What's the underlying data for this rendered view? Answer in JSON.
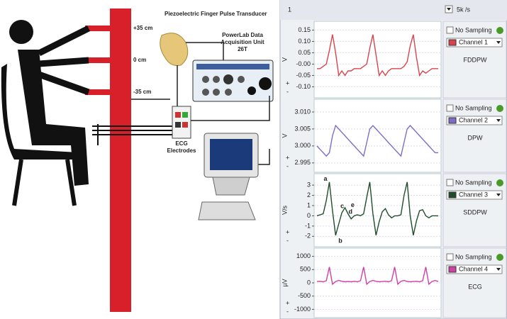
{
  "diagram": {
    "height_labels": [
      "+35 cm",
      "0 cm",
      "-35 cm"
    ],
    "transducer_label": "Piezoelectric Finger Pulse Transducer",
    "powerlab_label": [
      "PowerLab Data",
      "Acquisition Unit",
      "26T"
    ],
    "ecg_label": [
      "ECG",
      "Electrodes"
    ]
  },
  "toolbar": {
    "left": "1",
    "rate": "5k /s"
  },
  "panels": [
    {
      "unit": "V",
      "sampling": "No Sampling",
      "channel": "Channel 1",
      "color": "#d9444c",
      "name": "FDDPW",
      "ylim": [
        -0.13,
        0.17
      ],
      "yticks": [
        0.15,
        {
          "value": 0.1,
          "label": "0.10"
        },
        0.05,
        {
          "value": 0,
          "label": "-0.00"
        },
        -0.05,
        {
          "value": -0.1,
          "label": "-0.10"
        }
      ],
      "values": [
        -0.02,
        -0.02,
        -0.01,
        0.0,
        0.06,
        0.13,
        0.05,
        -0.05,
        -0.03,
        -0.05,
        -0.03,
        -0.03,
        -0.02,
        -0.02,
        -0.02,
        -0.01,
        0.0,
        0.07,
        0.13,
        0.04,
        -0.05,
        -0.03,
        -0.05,
        -0.03,
        -0.02,
        -0.02,
        -0.02,
        -0.02,
        -0.01,
        0.01,
        0.08,
        0.13,
        0.03,
        -0.05,
        -0.03,
        -0.04,
        -0.03,
        -0.02,
        -0.02,
        -0.02
      ]
    },
    {
      "unit": "V",
      "sampling": "No Sampling",
      "channel": "Channel 2",
      "color": "#7f6cc8",
      "name": "DPW",
      "ylim": [
        2.9935,
        3.0125
      ],
      "yticks": [
        {
          "value": 3.01,
          "label": "3.010"
        },
        3.005,
        {
          "value": 3.0,
          "label": "3.000"
        },
        2.995
      ],
      "values": [
        3.0,
        2.999,
        2.998,
        2.997,
        2.998,
        3.003,
        3.006,
        3.005,
        3.004,
        3.003,
        3.002,
        3.001,
        3.0,
        2.999,
        2.998,
        2.997,
        3.001,
        3.005,
        3.006,
        3.005,
        3.004,
        3.003,
        3.002,
        3.001,
        3.0,
        2.999,
        2.998,
        2.997,
        3.001,
        3.005,
        3.006,
        3.005,
        3.004,
        3.003,
        3.002,
        3.001,
        3.0,
        2.999,
        2.998,
        2.998
      ]
    },
    {
      "unit": "V/s",
      "sampling": "No Sampling",
      "channel": "Channel 3",
      "color": "#1f4d2a",
      "name": "SDDPW",
      "ylim": [
        -2.6,
        3.7
      ],
      "yticks": [
        3,
        2,
        1,
        0,
        -1,
        -2
      ],
      "annotations": [
        "a",
        "b",
        "c",
        "d",
        "e"
      ],
      "values": [
        0.0,
        0.1,
        0.2,
        1.5,
        3.3,
        0.5,
        -1.9,
        -0.8,
        0.3,
        0.8,
        0.2,
        -0.3,
        0.0,
        0.1,
        0.0,
        0.2,
        1.8,
        3.3,
        0.2,
        -1.9,
        -0.6,
        0.4,
        0.7,
        0.1,
        -0.2,
        0.0,
        0.0,
        0.1,
        2.0,
        3.3,
        0.0,
        -1.9,
        -0.5,
        0.5,
        0.6,
        0.0,
        -0.2,
        0.0,
        0.0,
        0.0
      ]
    },
    {
      "unit": "µV",
      "sampling": "No Sampling",
      "channel": "Channel 4",
      "color": "#d23fa6",
      "name": "ECG",
      "ylim": [
        -1150,
        1150
      ],
      "yticks": [
        1000,
        500,
        0,
        -500,
        -1000
      ],
      "values": [
        50,
        60,
        40,
        80,
        600,
        -50,
        50,
        90,
        60,
        40,
        50,
        40,
        60,
        40,
        80,
        600,
        -50,
        50,
        90,
        60,
        40,
        50,
        60,
        40,
        80,
        600,
        -50,
        60,
        90,
        50,
        40,
        50,
        60,
        40,
        80,
        600,
        -50,
        50,
        90,
        50
      ]
    }
  ]
}
